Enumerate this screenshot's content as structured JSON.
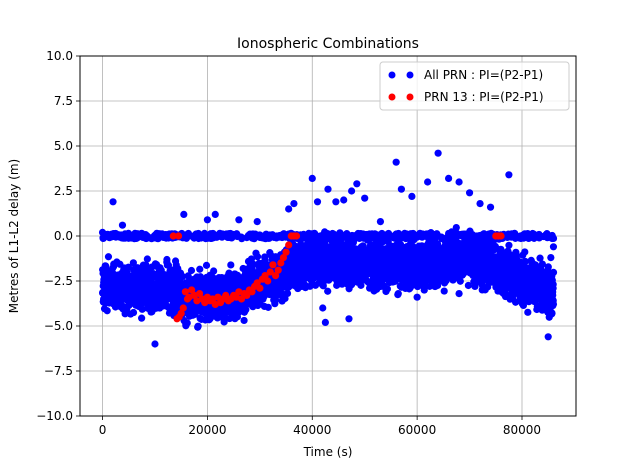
{
  "chart_data": {
    "type": "scatter",
    "title": "Ionospheric Combinations",
    "xlabel": "Time (s)",
    "ylabel": "Metres of L1-L2 delay (m)",
    "xlim": [
      -4300,
      90300
    ],
    "ylim": [
      -10,
      10
    ],
    "xticks": [
      0,
      20000,
      40000,
      60000,
      80000
    ],
    "xtick_labels": [
      "0",
      "20000",
      "40000",
      "60000",
      "80000"
    ],
    "yticks": [
      -10,
      -7.5,
      -5,
      -2.5,
      0,
      2.5,
      5,
      7.5,
      10
    ],
    "ytick_labels": [
      "−10.0",
      "−7.5",
      "−5.0",
      "−2.5",
      "0.0",
      "2.5",
      "5.0",
      "7.5",
      "10.0"
    ],
    "grid": true,
    "legend_position": "top-right",
    "series": [
      {
        "name": "All PRN : PI=(P2-P1)",
        "color": "#0000ff",
        "style": "dense-scatter",
        "points": [
          [
            0,
            0.2
          ],
          [
            2000,
            1.9
          ],
          [
            3800,
            0.6
          ],
          [
            10000,
            -6.0
          ],
          [
            15500,
            1.2
          ],
          [
            20000,
            0.9
          ],
          [
            21500,
            1.2
          ],
          [
            26000,
            0.9
          ],
          [
            29500,
            0.8
          ],
          [
            35500,
            1.5
          ],
          [
            36500,
            1.8
          ],
          [
            40000,
            3.2
          ],
          [
            41000,
            1.9
          ],
          [
            43000,
            2.6
          ],
          [
            44500,
            1.9
          ],
          [
            46000,
            2.0
          ],
          [
            47500,
            2.5
          ],
          [
            48500,
            2.9
          ],
          [
            50000,
            2.1
          ],
          [
            53000,
            0.8
          ],
          [
            56000,
            4.1
          ],
          [
            57000,
            2.6
          ],
          [
            59000,
            2.2
          ],
          [
            62000,
            3.0
          ],
          [
            64000,
            4.6
          ],
          [
            66000,
            3.2
          ],
          [
            68000,
            3.0
          ],
          [
            70000,
            2.4
          ],
          [
            72000,
            1.8
          ],
          [
            74000,
            1.6
          ],
          [
            77500,
            3.4
          ],
          [
            42000,
            -4.0
          ],
          [
            42500,
            -4.8
          ],
          [
            47000,
            -4.6
          ],
          [
            60000,
            -3.4
          ],
          [
            68000,
            -3.2
          ],
          [
            85000,
            -5.6
          ],
          [
            86000,
            -0.6
          ],
          [
            85500,
            -1.2
          ]
        ]
      },
      {
        "name": "PRN 13 : PI=(P2-P1)",
        "color": "#ff0000",
        "style": "track",
        "points": [
          [
            13500,
            0.0
          ],
          [
            14500,
            0.0
          ],
          [
            14200,
            -4.6
          ],
          [
            14600,
            -4.5
          ],
          [
            15000,
            -4.3
          ],
          [
            15400,
            -4.0
          ],
          [
            15800,
            -3.1
          ],
          [
            16200,
            -3.5
          ],
          [
            16500,
            -3.4
          ],
          [
            17000,
            -3.0
          ],
          [
            17500,
            -3.3
          ],
          [
            18000,
            -3.6
          ],
          [
            18500,
            -3.2
          ],
          [
            19000,
            -3.5
          ],
          [
            19500,
            -3.7
          ],
          [
            20000,
            -3.4
          ],
          [
            20500,
            -3.6
          ],
          [
            21000,
            -3.5
          ],
          [
            21500,
            -3.8
          ],
          [
            22000,
            -3.4
          ],
          [
            22500,
            -3.7
          ],
          [
            23000,
            -3.5
          ],
          [
            23500,
            -3.3
          ],
          [
            24000,
            -3.6
          ],
          [
            24500,
            -3.5
          ],
          [
            25000,
            -3.3
          ],
          [
            25500,
            -3.4
          ],
          [
            26000,
            -3.1
          ],
          [
            26500,
            -3.5
          ],
          [
            27000,
            -3.2
          ],
          [
            27500,
            -3.3
          ],
          [
            28000,
            -3.0
          ],
          [
            28500,
            -3.1
          ],
          [
            29000,
            -2.8
          ],
          [
            29500,
            -2.6
          ],
          [
            30000,
            -2.9
          ],
          [
            30500,
            -2.4
          ],
          [
            31000,
            -2.2
          ],
          [
            31500,
            -2.5
          ],
          [
            32000,
            -2.0
          ],
          [
            32500,
            -1.6
          ],
          [
            33000,
            -2.2
          ],
          [
            33500,
            -1.9
          ],
          [
            34000,
            -1.5
          ],
          [
            34500,
            -1.2
          ],
          [
            35000,
            -0.9
          ],
          [
            35500,
            -0.5
          ],
          [
            36000,
            0.0
          ],
          [
            36500,
            0.0
          ],
          [
            37000,
            0.0
          ],
          [
            75000,
            0.0
          ],
          [
            75500,
            0.0
          ],
          [
            76000,
            0.0
          ]
        ]
      }
    ]
  }
}
